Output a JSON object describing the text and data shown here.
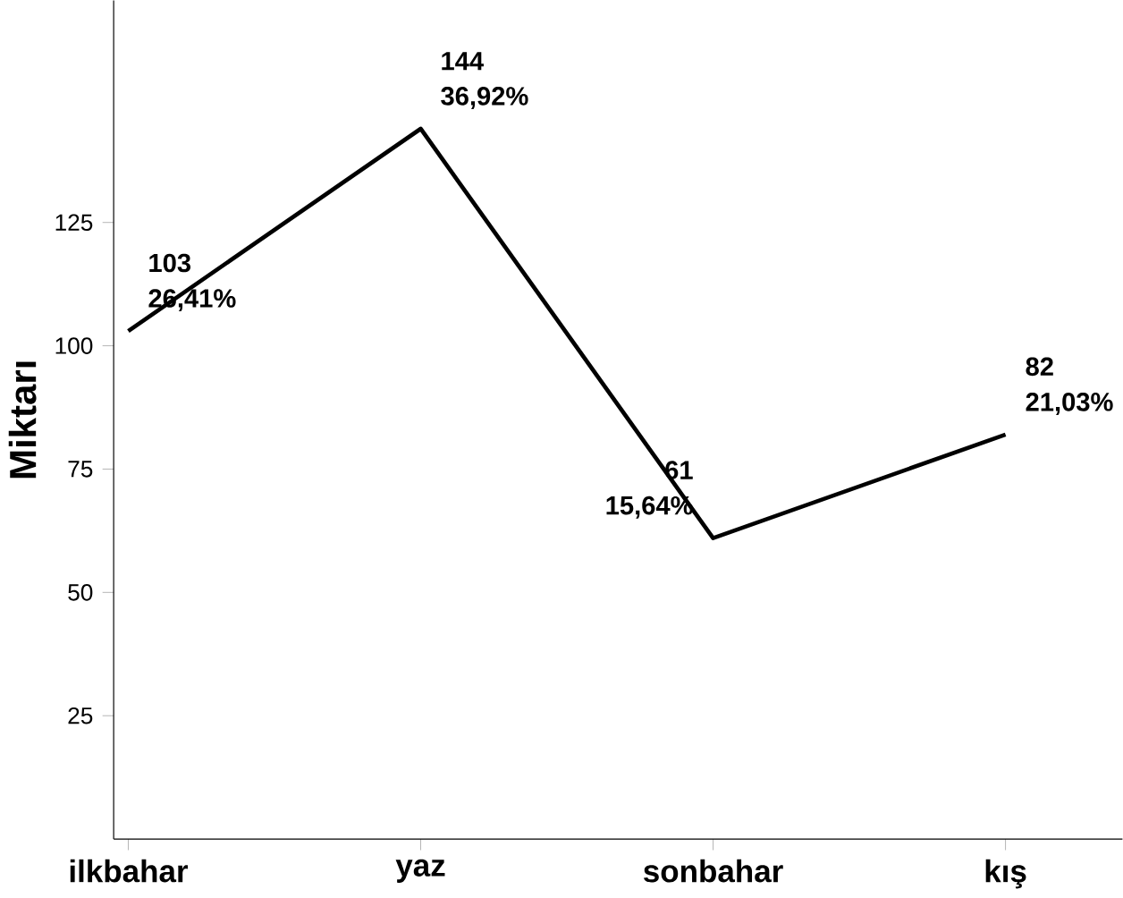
{
  "chart_data": {
    "type": "line",
    "ylabel": "Miktarı",
    "categories": [
      "ilkbahar",
      "yaz",
      "sonbahar",
      "kış"
    ],
    "values": [
      103,
      144,
      61,
      82
    ],
    "color": "#000000",
    "marker": "none",
    "line_style": "solid",
    "grid": false,
    "data_labels": true,
    "ylim": [
      0,
      170
    ],
    "yticks": [
      25,
      50,
      75,
      100,
      125
    ],
    "annotations": [
      {
        "text": "26,41%",
        "x": "ilkbahar",
        "y": 103
      },
      {
        "text": "36,92%",
        "x": "yaz",
        "y": 144
      },
      {
        "text": "15,64%",
        "x": "sonbahar",
        "y": 61
      },
      {
        "text": "21,03%",
        "x": "kış",
        "y": 82
      }
    ]
  }
}
